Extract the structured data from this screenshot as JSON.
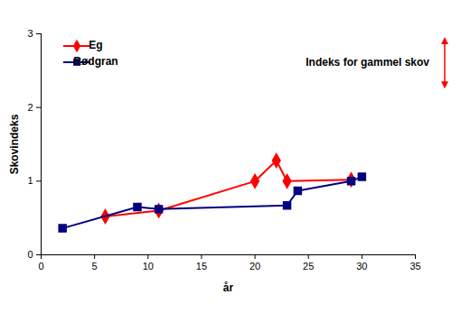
{
  "chart_data": {
    "type": "line",
    "x_label": "år",
    "y_label": "Skovindeks",
    "xlim": [
      0,
      35
    ],
    "xticks": [
      0,
      5,
      10,
      15,
      20,
      25,
      30,
      35
    ],
    "ylim": [
      0,
      3
    ],
    "yticks": [
      0,
      1,
      2,
      3
    ],
    "grid": false,
    "legend": "top-left",
    "series": [
      {
        "name": "Eg",
        "color": "#ff0000",
        "marker": "diamond",
        "x": [
          6,
          11,
          20,
          22,
          23,
          29
        ],
        "values": [
          0.52,
          0.6,
          1.0,
          1.28,
          1.0,
          1.02
        ]
      },
      {
        "name": "Rødgran",
        "color": "#000080",
        "marker": "square",
        "x": [
          2,
          9,
          11,
          23,
          24,
          29,
          30
        ],
        "values": [
          0.36,
          0.65,
          0.62,
          0.67,
          0.87,
          1.0,
          1.06
        ]
      }
    ],
    "annotations": [
      {
        "text": "Indeks for gammel skov",
        "range": [
          2.25,
          2.95
        ],
        "color": "#ff0000"
      }
    ]
  }
}
